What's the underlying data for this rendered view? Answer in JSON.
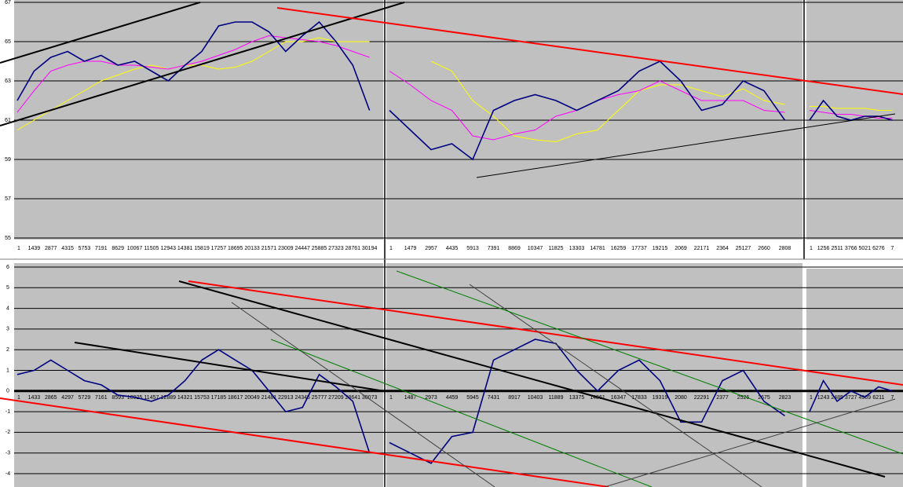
{
  "chart_data": [
    {
      "type": "line",
      "ylim": [
        55,
        67
      ],
      "yticks": [
        55,
        57,
        59,
        61,
        63,
        65,
        67
      ],
      "grid": true,
      "categories": [
        "1",
        "1439",
        "2877",
        "4315",
        "5753",
        "7191",
        "8629",
        "10067",
        "11505",
        "12943",
        "14381",
        "15819",
        "17257",
        "18695",
        "20133",
        "21571",
        "23009",
        "24447",
        "25885",
        "27323",
        "28761",
        "30194"
      ],
      "series": [
        {
          "color": "#000080",
          "values": [
            62,
            63.5,
            64.2,
            64.5,
            64,
            64.3,
            63.8,
            64,
            63.5,
            63,
            63.8,
            64.5,
            65.8,
            66,
            66,
            65.5,
            64.5,
            65.3,
            66,
            65,
            63.8,
            61.5
          ]
        },
        {
          "color": "#ff00ff",
          "values": [
            61.4,
            62.5,
            63.5,
            63.8,
            64,
            64,
            63.8,
            63.8,
            63.7,
            63.6,
            63.8,
            64,
            64.3,
            64.6,
            65,
            65.3,
            65.2,
            65.1,
            65,
            64.8,
            64.5,
            64.2
          ]
        },
        {
          "color": "#ffff00",
          "values": [
            60.5,
            61,
            61.5,
            62,
            62.5,
            63,
            63.3,
            63.6,
            63.8,
            63.6,
            63.8,
            63.8,
            63.6,
            63.7,
            64,
            64.5,
            65,
            65,
            65.2,
            65,
            65,
            65
          ]
        }
      ]
    },
    {
      "type": "line",
      "ylim": [
        55,
        67
      ],
      "categories": [
        "1",
        "1479",
        "2957",
        "4435",
        "5913",
        "7391",
        "8869",
        "10347",
        "11825",
        "13303",
        "14781",
        "16259",
        "17737",
        "19215",
        "2069",
        "22171",
        "2364",
        "25127",
        "2660",
        "2808"
      ],
      "series": [
        {
          "color": "#000080",
          "values": [
            61.5,
            60.5,
            59.5,
            59.8,
            59,
            61.5,
            62,
            62.3,
            62,
            61.5,
            62,
            62.5,
            63.5,
            64,
            63,
            61.5,
            61.8,
            63,
            62.5,
            61
          ]
        },
        {
          "color": "#ff00ff",
          "values": [
            63.5,
            62.8,
            62,
            61.5,
            60.2,
            60,
            60.3,
            60.5,
            61.2,
            61.5,
            62,
            62.3,
            62.5,
            63,
            62.5,
            62,
            62,
            62,
            61.5,
            61.4
          ]
        },
        {
          "color": "#ffff00",
          "values": [
            null,
            null,
            64,
            63.5,
            62,
            61.2,
            60.2,
            60,
            59.9,
            60.3,
            60.5,
            61.5,
            62.5,
            62.8,
            62.8,
            62.5,
            62.2,
            62.6,
            62,
            61.8
          ]
        }
      ]
    },
    {
      "type": "line",
      "ylim": [
        55,
        67
      ],
      "categories": [
        "1",
        "1256",
        "2511",
        "3766",
        "5021",
        "6276",
        "7"
      ],
      "series": [
        {
          "color": "#000080",
          "values": [
            61,
            62,
            61.2,
            61,
            61.2,
            61.2,
            61
          ]
        },
        {
          "color": "#ff00ff",
          "values": [
            61.5,
            61.4,
            61.3,
            61.3,
            61.2,
            61.1,
            61.1
          ]
        },
        {
          "color": "#ffff00",
          "values": [
            61.7,
            61.7,
            61.6,
            61.6,
            61.6,
            61.5,
            61.5
          ]
        }
      ]
    },
    {
      "type": "line",
      "ylim": [
        -4,
        6
      ],
      "yticks": [
        -4,
        -3,
        -2,
        -1,
        0,
        1,
        2,
        3,
        4,
        5,
        6
      ],
      "grid": true,
      "categories": [
        "1",
        "1433",
        "2865",
        "4297",
        "5729",
        "7161",
        "8593",
        "10025",
        "11457",
        "12889",
        "14321",
        "15753",
        "17185",
        "18617",
        "20049",
        "21481",
        "22913",
        "24345",
        "25777",
        "27209",
        "28641",
        "30073"
      ],
      "series": [
        {
          "color": "#000080",
          "values": [
            0.8,
            1,
            1.5,
            1,
            0.5,
            0.3,
            -0.2,
            -0.3,
            -0.5,
            -0.2,
            0.5,
            1.5,
            2,
            1.5,
            1,
            0,
            -1,
            -0.8,
            0.8,
            0.2,
            -0.5,
            -3
          ]
        }
      ]
    },
    {
      "type": "line",
      "ylim": [
        -4,
        6
      ],
      "categories": [
        "1",
        "1487",
        "2973",
        "4459",
        "5945",
        "7431",
        "8917",
        "10403",
        "11889",
        "13375",
        "14861",
        "16347",
        "17833",
        "19319",
        "2080",
        "22291",
        "2377",
        "2526",
        "2675",
        "2823"
      ],
      "series": [
        {
          "color": "#000080",
          "values": [
            -2.5,
            -3,
            -3.5,
            -2.2,
            -2,
            1.5,
            2,
            2.5,
            2.3,
            1,
            0,
            1,
            1.5,
            0.5,
            -1.5,
            -1.5,
            0.5,
            1,
            -0.5,
            -1.2
          ]
        }
      ]
    },
    {
      "type": "line",
      "ylim": [
        -4,
        6
      ],
      "categories": [
        "1",
        "1243",
        "2485",
        "3727",
        "4969",
        "6211",
        "7"
      ],
      "series": [
        {
          "color": "#000080",
          "values": [
            -1,
            0.5,
            -0.5,
            0,
            -0.3,
            0.2,
            0
          ]
        }
      ]
    }
  ]
}
